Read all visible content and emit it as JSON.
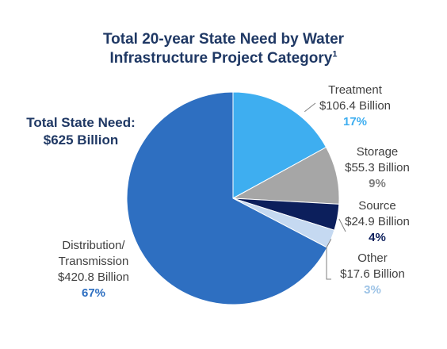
{
  "title": {
    "line1": "Total 20-year State Need by Water",
    "line2": "Infrastructure Project Category",
    "footnote": "1"
  },
  "total": {
    "line1": "Total State Need:",
    "line2": "$625 Billion"
  },
  "chart_data": {
    "type": "pie",
    "title": "Total 20-year State Need by Water Infrastructure Project Category",
    "unit": "Billion",
    "slices": [
      {
        "name": "Treatment",
        "value": 106.4,
        "value_label": "$106.4 Billion",
        "percent_label": "17%",
        "color": "#3eaef0",
        "pct_color": "#3eaef0"
      },
      {
        "name": "Storage",
        "value": 55.3,
        "value_label": "$55.3 Billion",
        "percent_label": "9%",
        "color": "#a6a6a6",
        "pct_color": "#7f7f7f"
      },
      {
        "name": "Source",
        "value": 24.9,
        "value_label": "$24.9 Billion",
        "percent_label": "4%",
        "color": "#0c1f5c",
        "pct_color": "#0c1f5c"
      },
      {
        "name": "Other",
        "value": 17.6,
        "value_label": "$17.6 Billion",
        "percent_label": "3%",
        "color": "#c5d9f1",
        "pct_color": "#9dc3e6"
      },
      {
        "name": "Distribution/ Transmission",
        "value": 420.8,
        "value_label": "$420.8 Billion",
        "percent_label": "67%",
        "color": "#2e6fc1",
        "pct_color": "#2e6fc1"
      }
    ],
    "total_label": "$625 Billion",
    "start_angle": "12 o'clock",
    "direction": "clockwise",
    "legend": "none"
  }
}
